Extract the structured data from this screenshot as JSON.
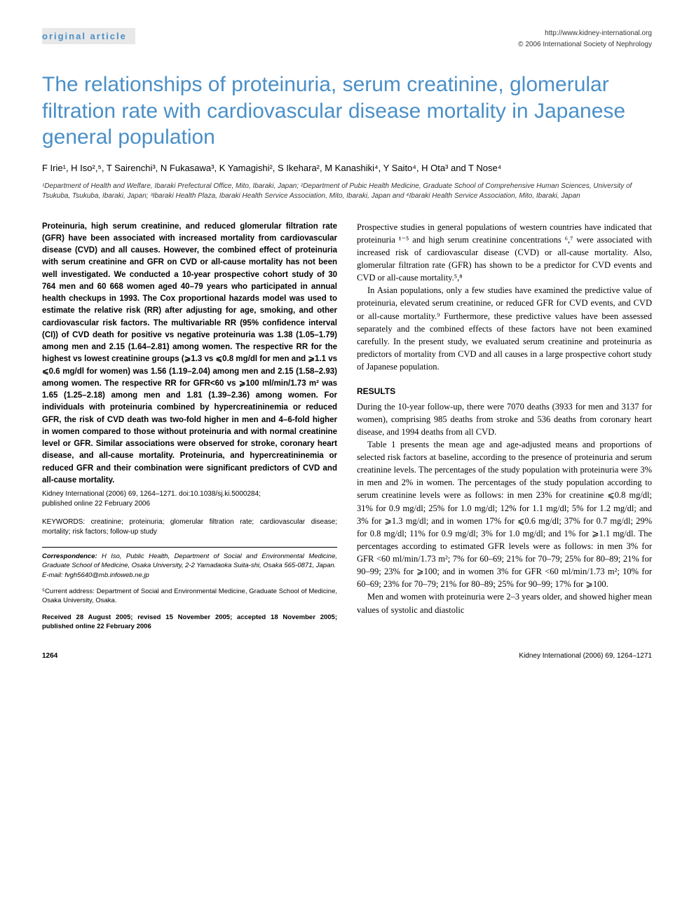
{
  "header": {
    "article_type": "original article",
    "url": "http://www.kidney-international.org",
    "copyright": "© 2006 International Society of Nephrology"
  },
  "title": "The relationships of proteinuria, serum creatinine, glomerular filtration rate with cardiovascular disease mortality in Japanese general population",
  "authors": "F Irie¹, H Iso²,⁵, T Sairenchi³, N Fukasawa³, K Yamagishi², S Ikehara², M Kanashiki⁴, Y Saito⁴, H Ota³ and T Nose⁴",
  "affiliations": "¹Department of Health and Welfare, Ibaraki Prefectural Office, Mito, Ibaraki, Japan; ²Department of Pubic Health Medicine, Graduate School of Comprehensive Human Sciences, University of Tsukuba, Tsukuba, Ibaraki, Japan; ³Ibaraki Health Plaza, Ibaraki Health Service Association, Mito, Ibaraki, Japan and ⁴Ibaraki Health Service Association, Mito, Ibaraki, Japan",
  "abstract": "Proteinuria, high serum creatinine, and reduced glomerular filtration rate (GFR) have been associated with increased mortality from cardiovascular disease (CVD) and all causes. However, the combined effect of proteinuria with serum creatinine and GFR on CVD or all-cause mortality has not been well investigated. We conducted a 10-year prospective cohort study of 30 764 men and 60 668 women aged 40–79 years who participated in annual health checkups in 1993. The Cox proportional hazards model was used to estimate the relative risk (RR) after adjusting for age, smoking, and other cardiovascular risk factors. The multivariable RR (95% confidence interval (CI)) of CVD death for positive vs negative proteinuria was 1.38 (1.05–1.79) among men and 2.15 (1.64–2.81) among women. The respective RR for the highest vs lowest creatinine groups (⩾1.3 vs ⩽0.8 mg/dl for men and ⩾1.1 vs ⩽0.6 mg/dl for women) was 1.56 (1.19–2.04) among men and 2.15 (1.58–2.93) among women. The respective RR for GFR<60 vs ⩾100 ml/min/1.73 m² was 1.65 (1.25–2.18) among men and 1.81 (1.39–2.36) among women. For individuals with proteinuria combined by hypercreatininemia or reduced GFR, the risk of CVD death was two-fold higher in men and 4–6-fold higher in women compared to those without proteinuria and with normal creatinine level or GFR. Similar associations were observed for stroke, coronary heart disease, and all-cause mortality. Proteinuria, and hypercreatininemia or reduced GFR and their combination were significant predictors of CVD and all-cause mortality.",
  "citation_line1": "Kidney International (2006) 69, 1264–1271. doi:10.1038/sj.ki.5000284;",
  "citation_line2": "published online 22 February 2006",
  "keywords": "KEYWORDS: creatinine; proteinuria; glomerular filtration rate; cardiovascular disease; mortality; risk factors; follow-up study",
  "correspondence": {
    "label": "Correspondence:",
    "text": "H Iso, Public Health, Department of Social and Environmental Medicine, Graduate School of Medicine, Osaka University, 2-2 Yamadaoka Suita-shi, Osaka 565-0871, Japan.",
    "email_label": "E-mail:",
    "email": "fvgh5640@mb.infoweb.ne.jp"
  },
  "current_address": "⁵Current address: Department of Social and Environmental Medicine, Graduate School of Medicine, Osaka University, Osaka.",
  "dates": "Received 28 August 2005; revised 15 November 2005; accepted 18 November 2005; published online 22 February 2006",
  "body": {
    "intro_p1": "Prospective studies in general populations of western countries have indicated that proteinuria ¹⁻⁵ and high serum creatinine concentrations ⁶,⁷ were associated with increased risk of cardiovascular disease (CVD) or all-cause mortality. Also, glomerular filtration rate (GFR) has shown to be a predictor for CVD events and CVD or all-cause mortality.⁵,⁸",
    "intro_p2": "In Asian populations, only a few studies have examined the predictive value of proteinuria, elevated serum creatinine, or reduced GFR for CVD events, and CVD or all-cause mortality.⁹ Furthermore, these predictive values have been assessed separately and the combined effects of these factors have not been examined carefully. In the present study, we evaluated serum creatinine and proteinuria as predictors of mortality from CVD and all causes in a large prospective cohort study of Japanese population.",
    "results_head": "RESULTS",
    "results_p1": "During the 10-year follow-up, there were 7070 deaths (3933 for men and 3137 for women), comprising 985 deaths from stroke and 536 deaths from coronary heart disease, and 1994 deaths from all CVD.",
    "results_p2": "Table 1 presents the mean age and age-adjusted means and proportions of selected risk factors at baseline, according to the presence of proteinuria and serum creatinine levels. The percentages of the study population with proteinuria were 3% in men and 2% in women. The percentages of the study population according to serum creatinine levels were as follows: in men 23% for creatinine ⩽0.8 mg/dl; 31% for 0.9 mg/dl; 25% for 1.0 mg/dl; 12% for 1.1 mg/dl; 5% for 1.2 mg/dl; and 3% for ⩾1.3 mg/dl; and in women 17% for ⩽0.6 mg/dl; 37% for 0.7 mg/dl; 29% for 0.8 mg/dl; 11% for 0.9 mg/dl; 3% for 1.0 mg/dl; and 1% for ⩾1.1 mg/dl. The percentages according to estimated GFR levels were as follows: in men 3% for GFR <60 ml/min/1.73 m²; 7% for 60–69; 21% for 70–79; 25% for 80–89; 21% for 90–99; 23% for ⩾100; and in women 3% for GFR <60 ml/min/1.73 m²; 10% for 60–69; 23% for 70–79; 21% for 80–89; 25% for 90–99; 17% for ⩾100.",
    "results_p3": "Men and women with proteinuria were 2–3 years older, and showed higher mean values of systolic and diastolic"
  },
  "footer": {
    "page": "1264",
    "running": "Kidney International (2006) 69, 1264–1271"
  },
  "colors": {
    "accent": "#4a8fc7",
    "header_bg": "#e8e8e8",
    "text": "#000000",
    "muted": "#333333"
  },
  "typography": {
    "title_fontsize": 30,
    "body_fontsize": 12.5,
    "abstract_fontsize": 11.5,
    "small_fontsize": 10
  }
}
